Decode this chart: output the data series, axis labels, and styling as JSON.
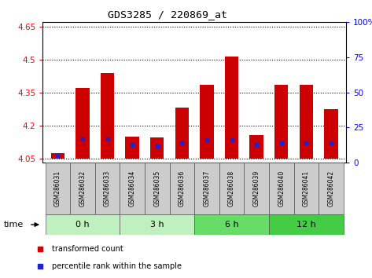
{
  "title": "GDS3285 / 220869_at",
  "samples": [
    "GSM286031",
    "GSM286032",
    "GSM286033",
    "GSM286034",
    "GSM286035",
    "GSM286036",
    "GSM286037",
    "GSM286038",
    "GSM286039",
    "GSM286040",
    "GSM286041",
    "GSM286042"
  ],
  "bar_values": [
    4.075,
    4.37,
    4.44,
    4.15,
    4.145,
    4.28,
    4.385,
    4.515,
    4.155,
    4.385,
    4.385,
    4.275
  ],
  "percentile_values": [
    5,
    17,
    17,
    13,
    12,
    14,
    16,
    16,
    13,
    14,
    14,
    14
  ],
  "baseline": 4.05,
  "ylim_left": [
    4.03,
    4.67
  ],
  "ylim_right": [
    0,
    100
  ],
  "yticks_left": [
    4.05,
    4.2,
    4.35,
    4.5,
    4.65
  ],
  "yticks_right": [
    0,
    25,
    50,
    75,
    100
  ],
  "bar_color": "#cc0000",
  "percentile_color": "#2222cc",
  "bg_labels": "#cccccc",
  "groups": [
    {
      "label": "0 h",
      "samples": [
        0,
        1,
        2
      ],
      "color": "#c0f0c0"
    },
    {
      "label": "3 h",
      "samples": [
        3,
        4,
        5
      ],
      "color": "#c0f0c0"
    },
    {
      "label": "6 h",
      "samples": [
        6,
        7,
        8
      ],
      "color": "#66dd66"
    },
    {
      "label": "12 h",
      "samples": [
        9,
        10,
        11
      ],
      "color": "#44cc44"
    }
  ],
  "legend_items": [
    {
      "label": "transformed count",
      "color": "#cc0000"
    },
    {
      "label": "percentile rank within the sample",
      "color": "#2222cc"
    }
  ],
  "time_label": "time",
  "bar_width": 0.55,
  "figsize": [
    4.73,
    3.54
  ],
  "dpi": 100
}
